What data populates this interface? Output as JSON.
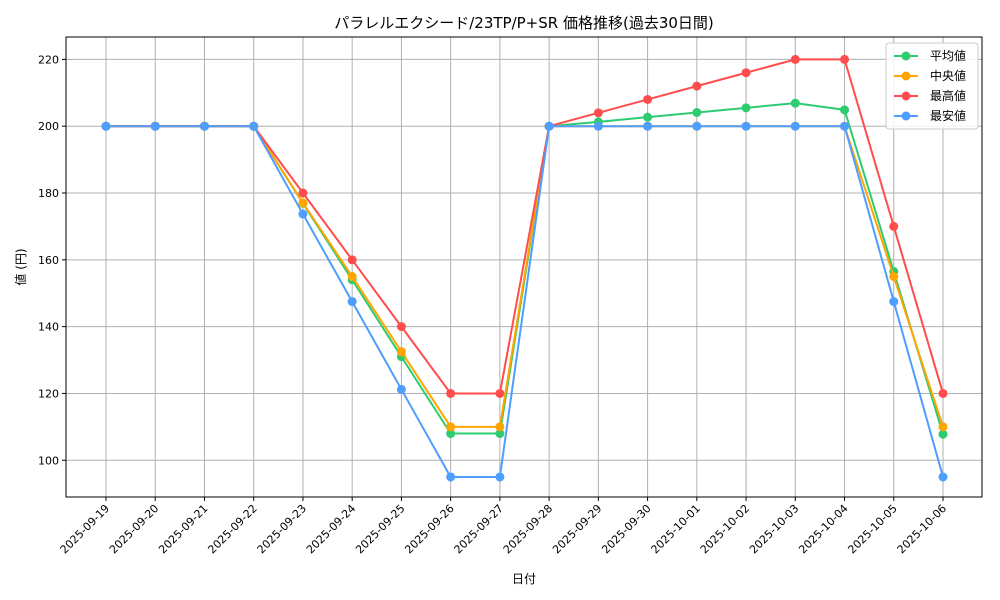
{
  "chart_data": {
    "type": "line",
    "title": "パラレルエクシード/23TP/P+SR 価格推移(過去30日間)",
    "xlabel": "日付",
    "ylabel": "値 (円)",
    "ylim": [
      89,
      226.7
    ],
    "yticks": [
      100,
      120,
      140,
      160,
      180,
      200,
      220
    ],
    "grid": true,
    "legend_position": "top-right",
    "categories": [
      "2025-09-19",
      "2025-09-20",
      "2025-09-21",
      "2025-09-22",
      "2025-09-23",
      "2025-09-24",
      "2025-09-25",
      "2025-09-26",
      "2025-09-27",
      "2025-09-28",
      "2025-09-29",
      "2025-09-30",
      "2025-10-01",
      "2025-10-02",
      "2025-10-03",
      "2025-10-04",
      "2025-10-05",
      "2025-10-06"
    ],
    "series": [
      {
        "name": "平均値",
        "color": "#2ecc71",
        "values": [
          200,
          200,
          200,
          200,
          176.9,
          154,
          131,
          108,
          108,
          200,
          201.3,
          202.7,
          204.1,
          205.5,
          206.9,
          204.9,
          156.5,
          107.8
        ]
      },
      {
        "name": "中央値",
        "color": "#ffa500",
        "values": [
          200,
          200,
          200,
          200,
          177,
          155,
          132.5,
          110,
          110,
          200,
          200,
          200,
          200,
          200,
          200,
          200,
          155,
          110
        ]
      },
      {
        "name": "最高値",
        "color": "#ff4d4d",
        "values": [
          200,
          200,
          200,
          200,
          180,
          160,
          140,
          120,
          120,
          200,
          204,
          208,
          212,
          216,
          220,
          220,
          170,
          120
        ]
      },
      {
        "name": "最安値",
        "color": "#4d9eff",
        "values": [
          200,
          200,
          200,
          200,
          173.7,
          147.5,
          121.2,
          95,
          95,
          200,
          200,
          200,
          200,
          200,
          200,
          200,
          147.5,
          95
        ]
      }
    ]
  }
}
